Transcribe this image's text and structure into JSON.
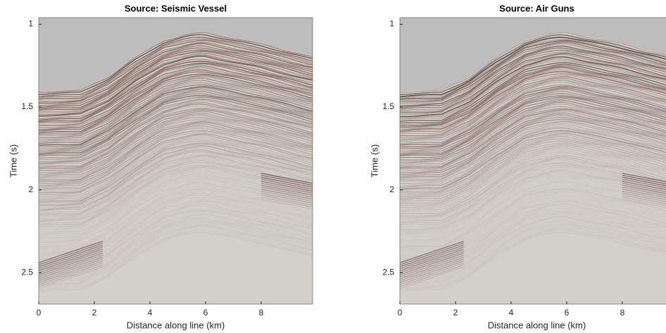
{
  "chart_data": [
    {
      "type": "image",
      "title": "Source: Seismic Vessel",
      "x_label": "Distance along line (km)",
      "y_label": "Time (s)",
      "xlim": [
        0,
        9.85
      ],
      "ylim": [
        0.96,
        2.69
      ],
      "y_reversed": true,
      "xticks": [
        0,
        2,
        4,
        6,
        8
      ],
      "yticks": [
        1,
        1.5,
        2,
        2.5
      ]
    },
    {
      "type": "image",
      "title": "Source: Air Guns",
      "x_label": "Distance along line (km)",
      "y_label": "Time (s)",
      "xlim": [
        0,
        9.85
      ],
      "ylim": [
        0.96,
        2.69
      ],
      "y_reversed": true,
      "xticks": [
        0,
        2,
        4,
        6,
        8
      ],
      "yticks": [
        1,
        1.5,
        2,
        2.5
      ]
    }
  ]
}
